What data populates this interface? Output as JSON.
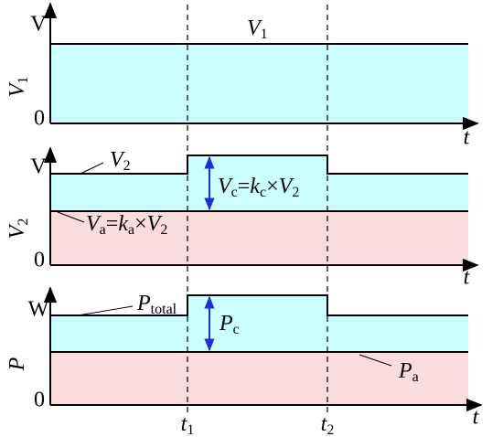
{
  "panels": [
    {
      "top_label": "V",
      "zero_label": "0",
      "time_axis_label": "t",
      "axis_label": [
        [
          "V",
          "1"
        ]
      ],
      "annotations": [
        [
          [
            "V",
            "1"
          ]
        ]
      ]
    },
    {
      "top_label": "V",
      "zero_label": "0",
      "time_axis_label": "t",
      "axis_label": [
        [
          "V",
          "2"
        ]
      ],
      "annotations": [
        [
          [
            "V",
            "2"
          ]
        ],
        [
          [
            "V",
            "c"
          ],
          [
            "="
          ],
          [
            "k",
            "c"
          ],
          [
            "×"
          ],
          [
            "V",
            "2"
          ]
        ],
        [
          [
            "V",
            "a"
          ],
          [
            "="
          ],
          [
            "k",
            "a"
          ],
          [
            "×"
          ],
          [
            "V",
            "2"
          ]
        ]
      ]
    },
    {
      "top_label": "W",
      "zero_label": "0",
      "time_axis_label": "t",
      "axis_label": [
        [
          "P"
        ]
      ],
      "annotations": [
        [
          [
            "P",
            "total"
          ]
        ],
        [
          [
            "P",
            "c"
          ]
        ],
        [
          [
            "P",
            "a"
          ]
        ]
      ]
    }
  ],
  "time_marks": [
    [
      [
        "t",
        "1"
      ]
    ],
    [
      [
        "t",
        "2"
      ]
    ]
  ]
}
